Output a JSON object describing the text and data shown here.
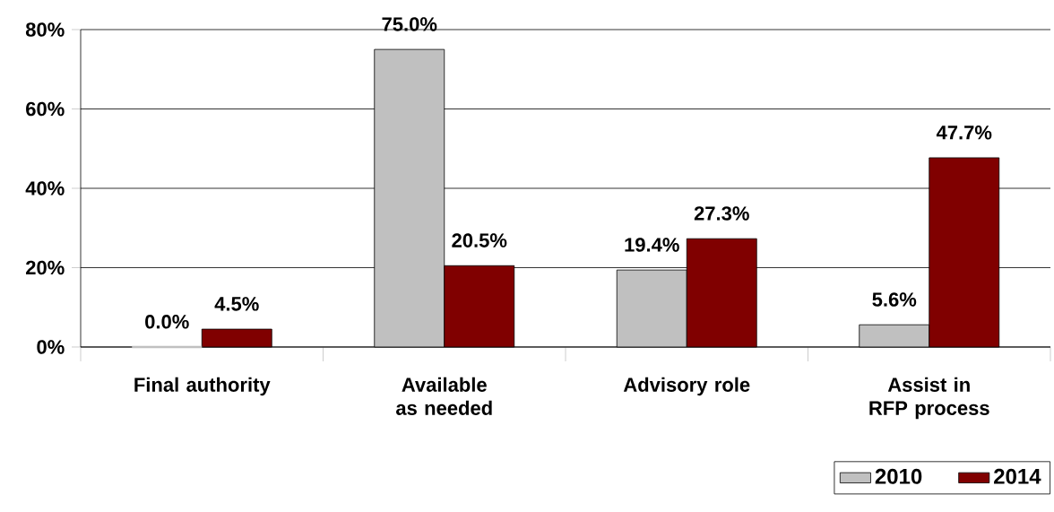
{
  "chart_data": {
    "type": "bar",
    "categories": [
      "Final authority",
      "Available as needed",
      "Advisory role",
      "Assist in RFP process"
    ],
    "series": [
      {
        "name": "2010",
        "color": "#c0c0c0",
        "values": [
          0.0,
          75.0,
          19.4,
          5.6
        ],
        "value_labels": [
          "0.0%",
          "75.0%",
          "19.4%",
          "5.6%"
        ]
      },
      {
        "name": "2014",
        "color": "#800000",
        "values": [
          4.5,
          20.5,
          27.3,
          47.7
        ],
        "value_labels": [
          "4.5%",
          "20.5%",
          "27.3%",
          "47.7%"
        ]
      }
    ],
    "ylim": [
      0,
      80
    ],
    "yticks": [
      {
        "value": 0,
        "label": "0%"
      },
      {
        "value": 20,
        "label": "20%"
      },
      {
        "value": 40,
        "label": "40%"
      },
      {
        "value": 60,
        "label": "60%"
      },
      {
        "value": 80,
        "label": "80%"
      }
    ],
    "grid": "y",
    "legend": "bottom right"
  }
}
